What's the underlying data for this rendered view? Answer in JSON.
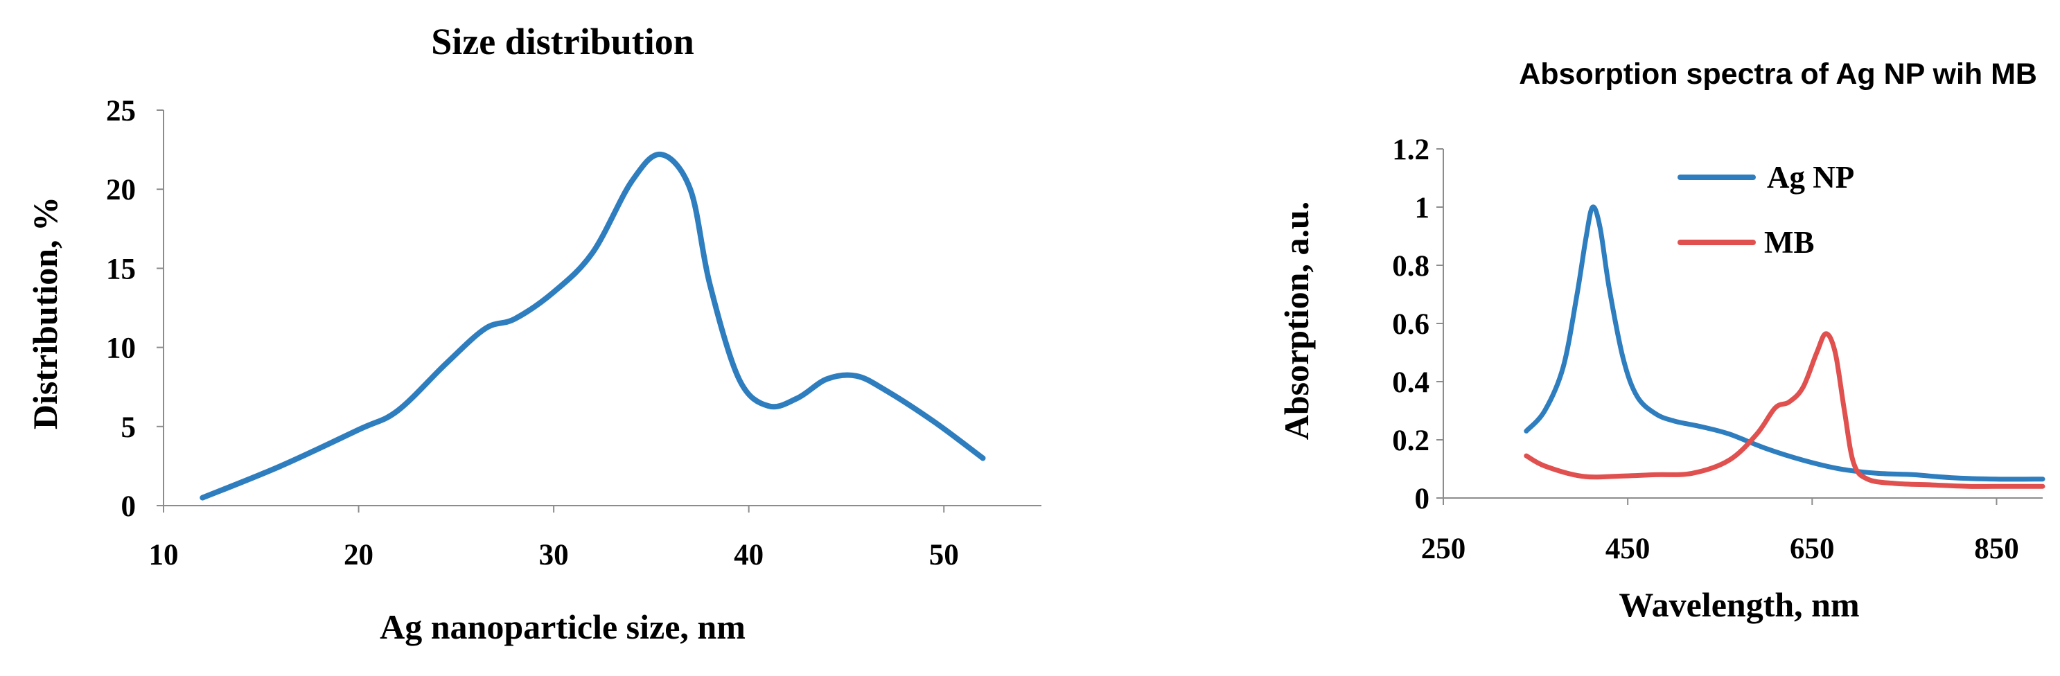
{
  "chart_data": [
    {
      "type": "line",
      "title": "Size distribution",
      "xlabel": "Ag nanoparticle size, nm",
      "ylabel": "Distribution, %",
      "xlim": [
        10,
        55
      ],
      "ylim": [
        0,
        25
      ],
      "x_ticks": [
        "10",
        "20",
        "30",
        "40",
        "50"
      ],
      "y_ticks": [
        "0",
        "5",
        "10",
        "15",
        "20",
        "25"
      ],
      "grid": false,
      "legend": "none",
      "series": [
        {
          "color": "#2e7ebf",
          "points": [
            [
              12,
              0.5
            ],
            [
              16,
              2.5
            ],
            [
              20,
              4.8
            ],
            [
              22,
              6
            ],
            [
              24.5,
              9
            ],
            [
              26.5,
              11.2
            ],
            [
              28,
              11.8
            ],
            [
              30,
              13.5
            ],
            [
              32,
              16
            ],
            [
              34,
              20.5
            ],
            [
              35.5,
              22.2
            ],
            [
              37,
              20
            ],
            [
              38,
              14
            ],
            [
              39.5,
              8
            ],
            [
              41,
              6.3
            ],
            [
              42.5,
              6.8
            ],
            [
              44,
              8
            ],
            [
              45.5,
              8.2
            ],
            [
              47,
              7.3
            ],
            [
              49.5,
              5.3
            ],
            [
              52,
              3
            ]
          ]
        }
      ]
    },
    {
      "type": "line",
      "title": "Absorption  spectra of Ag NP wih MB",
      "xlabel": "Wavelength, nm",
      "ylabel": "Absorption, a.u.",
      "xlim": [
        250,
        900
      ],
      "ylim": [
        0,
        1.2
      ],
      "x_ticks": [
        "250",
        "450",
        "650",
        "850"
      ],
      "y_ticks": [
        "0",
        "0.2",
        "0.4",
        "0.6",
        "0.8",
        "1",
        "1.2"
      ],
      "grid": false,
      "legend": "top-right",
      "series": [
        {
          "name": "Ag NP",
          "color": "#2e7ebf",
          "points": [
            [
              340,
              0.23
            ],
            [
              360,
              0.3
            ],
            [
              380,
              0.45
            ],
            [
              395,
              0.7
            ],
            [
              405,
              0.9
            ],
            [
              412,
              1.0
            ],
            [
              420,
              0.93
            ],
            [
              430,
              0.72
            ],
            [
              445,
              0.48
            ],
            [
              460,
              0.35
            ],
            [
              480,
              0.29
            ],
            [
              500,
              0.265
            ],
            [
              530,
              0.245
            ],
            [
              560,
              0.22
            ],
            [
              600,
              0.17
            ],
            [
              640,
              0.13
            ],
            [
              680,
              0.1
            ],
            [
              720,
              0.085
            ],
            [
              760,
              0.08
            ],
            [
              800,
              0.07
            ],
            [
              850,
              0.065
            ],
            [
              900,
              0.065
            ]
          ]
        },
        {
          "name": "MB",
          "color": "#e0504f",
          "points": [
            [
              340,
              0.145
            ],
            [
              360,
              0.11
            ],
            [
              400,
              0.075
            ],
            [
              440,
              0.075
            ],
            [
              480,
              0.08
            ],
            [
              520,
              0.085
            ],
            [
              560,
              0.13
            ],
            [
              590,
              0.22
            ],
            [
              610,
              0.31
            ],
            [
              625,
              0.33
            ],
            [
              640,
              0.38
            ],
            [
              655,
              0.5
            ],
            [
              665,
              0.565
            ],
            [
              675,
              0.5
            ],
            [
              685,
              0.3
            ],
            [
              695,
              0.12
            ],
            [
              710,
              0.065
            ],
            [
              740,
              0.05
            ],
            [
              780,
              0.045
            ],
            [
              820,
              0.04
            ],
            [
              860,
              0.04
            ],
            [
              900,
              0.04
            ]
          ]
        }
      ]
    }
  ]
}
